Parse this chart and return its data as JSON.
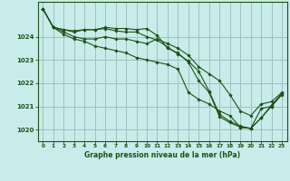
{
  "title": "Graphe pression niveau de la mer (hPa)",
  "background_color": "#c8ece9",
  "grid_color": "#a0c0be",
  "line_color": "#1e5218",
  "xlim": [
    -0.5,
    23.5
  ],
  "ylim": [
    1019.5,
    1025.5
  ],
  "yticks": [
    1020,
    1021,
    1022,
    1023,
    1024
  ],
  "xticks": [
    0,
    1,
    2,
    3,
    4,
    5,
    6,
    7,
    8,
    9,
    10,
    11,
    12,
    13,
    14,
    15,
    16,
    17,
    18,
    19,
    20,
    21,
    22,
    23
  ],
  "series": [
    [
      1025.2,
      1024.4,
      1024.1,
      1023.9,
      1023.8,
      1023.6,
      1023.5,
      1023.4,
      1023.3,
      1023.1,
      1023.0,
      1022.9,
      1022.8,
      1022.6,
      1021.6,
      1021.3,
      1021.1,
      1020.8,
      1020.6,
      1020.1,
      1020.05,
      1020.9,
      1021.0,
      1021.5
    ],
    [
      1025.2,
      1024.4,
      1024.2,
      1024.0,
      1023.9,
      1023.9,
      1024.0,
      1023.9,
      1023.9,
      1023.8,
      1023.7,
      1023.9,
      1023.7,
      1023.5,
      1023.2,
      1022.7,
      1022.4,
      1022.1,
      1021.5,
      1020.8,
      1020.6,
      1021.1,
      1021.2,
      1021.6
    ],
    [
      1025.2,
      1024.4,
      1024.3,
      1024.25,
      1024.3,
      1024.3,
      1024.4,
      1024.35,
      1024.35,
      1024.3,
      1024.35,
      1024.05,
      1023.5,
      1023.3,
      1022.9,
      1022.1,
      1021.6,
      1020.55,
      1020.3,
      1020.1,
      1020.05,
      1020.5,
      1021.05,
      1021.55
    ],
    [
      1025.2,
      1024.4,
      1024.3,
      1024.2,
      1024.3,
      1024.3,
      1024.35,
      1024.25,
      1024.2,
      1024.2,
      1024.0,
      1023.85,
      1023.55,
      1023.25,
      1022.95,
      1022.5,
      1021.65,
      1020.65,
      1020.35,
      1020.15,
      1020.05,
      1020.5,
      1021.0,
      1021.55
    ]
  ]
}
